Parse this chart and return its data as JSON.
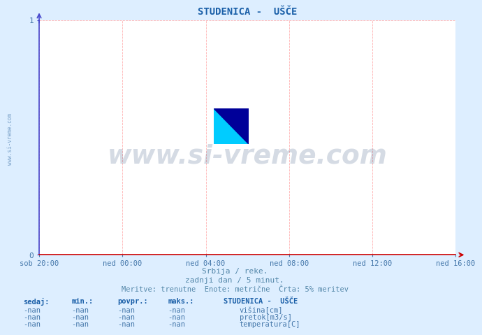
{
  "title": "STUDENICA -  UŠČE",
  "title_color": "#1a5fa8",
  "bg_color": "#ddeeff",
  "plot_bg_color": "#ffffff",
  "grid_color": "#ffaaaa",
  "left_spine_color": "#4444cc",
  "bottom_spine_color": "#cc0000",
  "text_color": "#4477aa",
  "info_text_color": "#5588aa",
  "watermark_text": "www.si-vreme.com",
  "watermark_color": "#1a3a6b",
  "watermark_alpha": 0.18,
  "sidebar_text": "www.si-vreme.com",
  "xticklabels": [
    "sob 20:00",
    "ned 00:00",
    "ned 04:00",
    "ned 08:00",
    "ned 12:00",
    "ned 16:00"
  ],
  "xtick_positions": [
    0.0,
    0.2,
    0.4,
    0.6,
    0.8,
    1.0
  ],
  "ylim": [
    0,
    1
  ],
  "yticks": [
    0,
    1
  ],
  "info_line1": "Srbija / reke.",
  "info_line2": "zadnji dan / 5 minut.",
  "info_line3": "Meritve: trenutne  Enote: metrične  Črta: 5% meritev",
  "legend_title": "STUDENICA -  UŠČE",
  "legend_labels": [
    "višina[cm]",
    "pretok[m3/s]",
    "temperatura[C]"
  ],
  "legend_colors": [
    "#0000cc",
    "#00bb00",
    "#cc0000"
  ],
  "table_headers": [
    "sedaj:",
    "min.:",
    "povpr.:",
    "maks.:"
  ],
  "table_values": [
    "-nan",
    "-nan",
    "-nan",
    "-nan"
  ],
  "logo_colors": {
    "yellow": "#ffff00",
    "cyan": "#00ccff",
    "darkblue": "#000099"
  }
}
